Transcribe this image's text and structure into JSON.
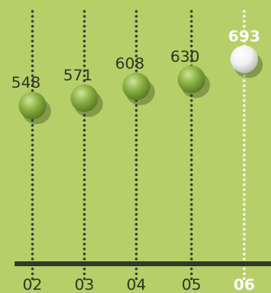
{
  "colors": {
    "background": "#b6cf68",
    "marker": "#7da23a",
    "highlight": "#ffffff",
    "text": "#2e3324",
    "axis": "#2f3a2a"
  },
  "chart_data": {
    "type": "scatter",
    "categories": [
      "02",
      "03",
      "04",
      "05",
      "06"
    ],
    "values": [
      548,
      571,
      608,
      630,
      693
    ],
    "value_labels": [
      "548",
      "571",
      "608",
      "630",
      "693"
    ],
    "highlight_index": 4,
    "title": "",
    "xlabel": "",
    "ylabel": "",
    "ylim": [
      400,
      720
    ],
    "grid": false,
    "legend": "none"
  }
}
